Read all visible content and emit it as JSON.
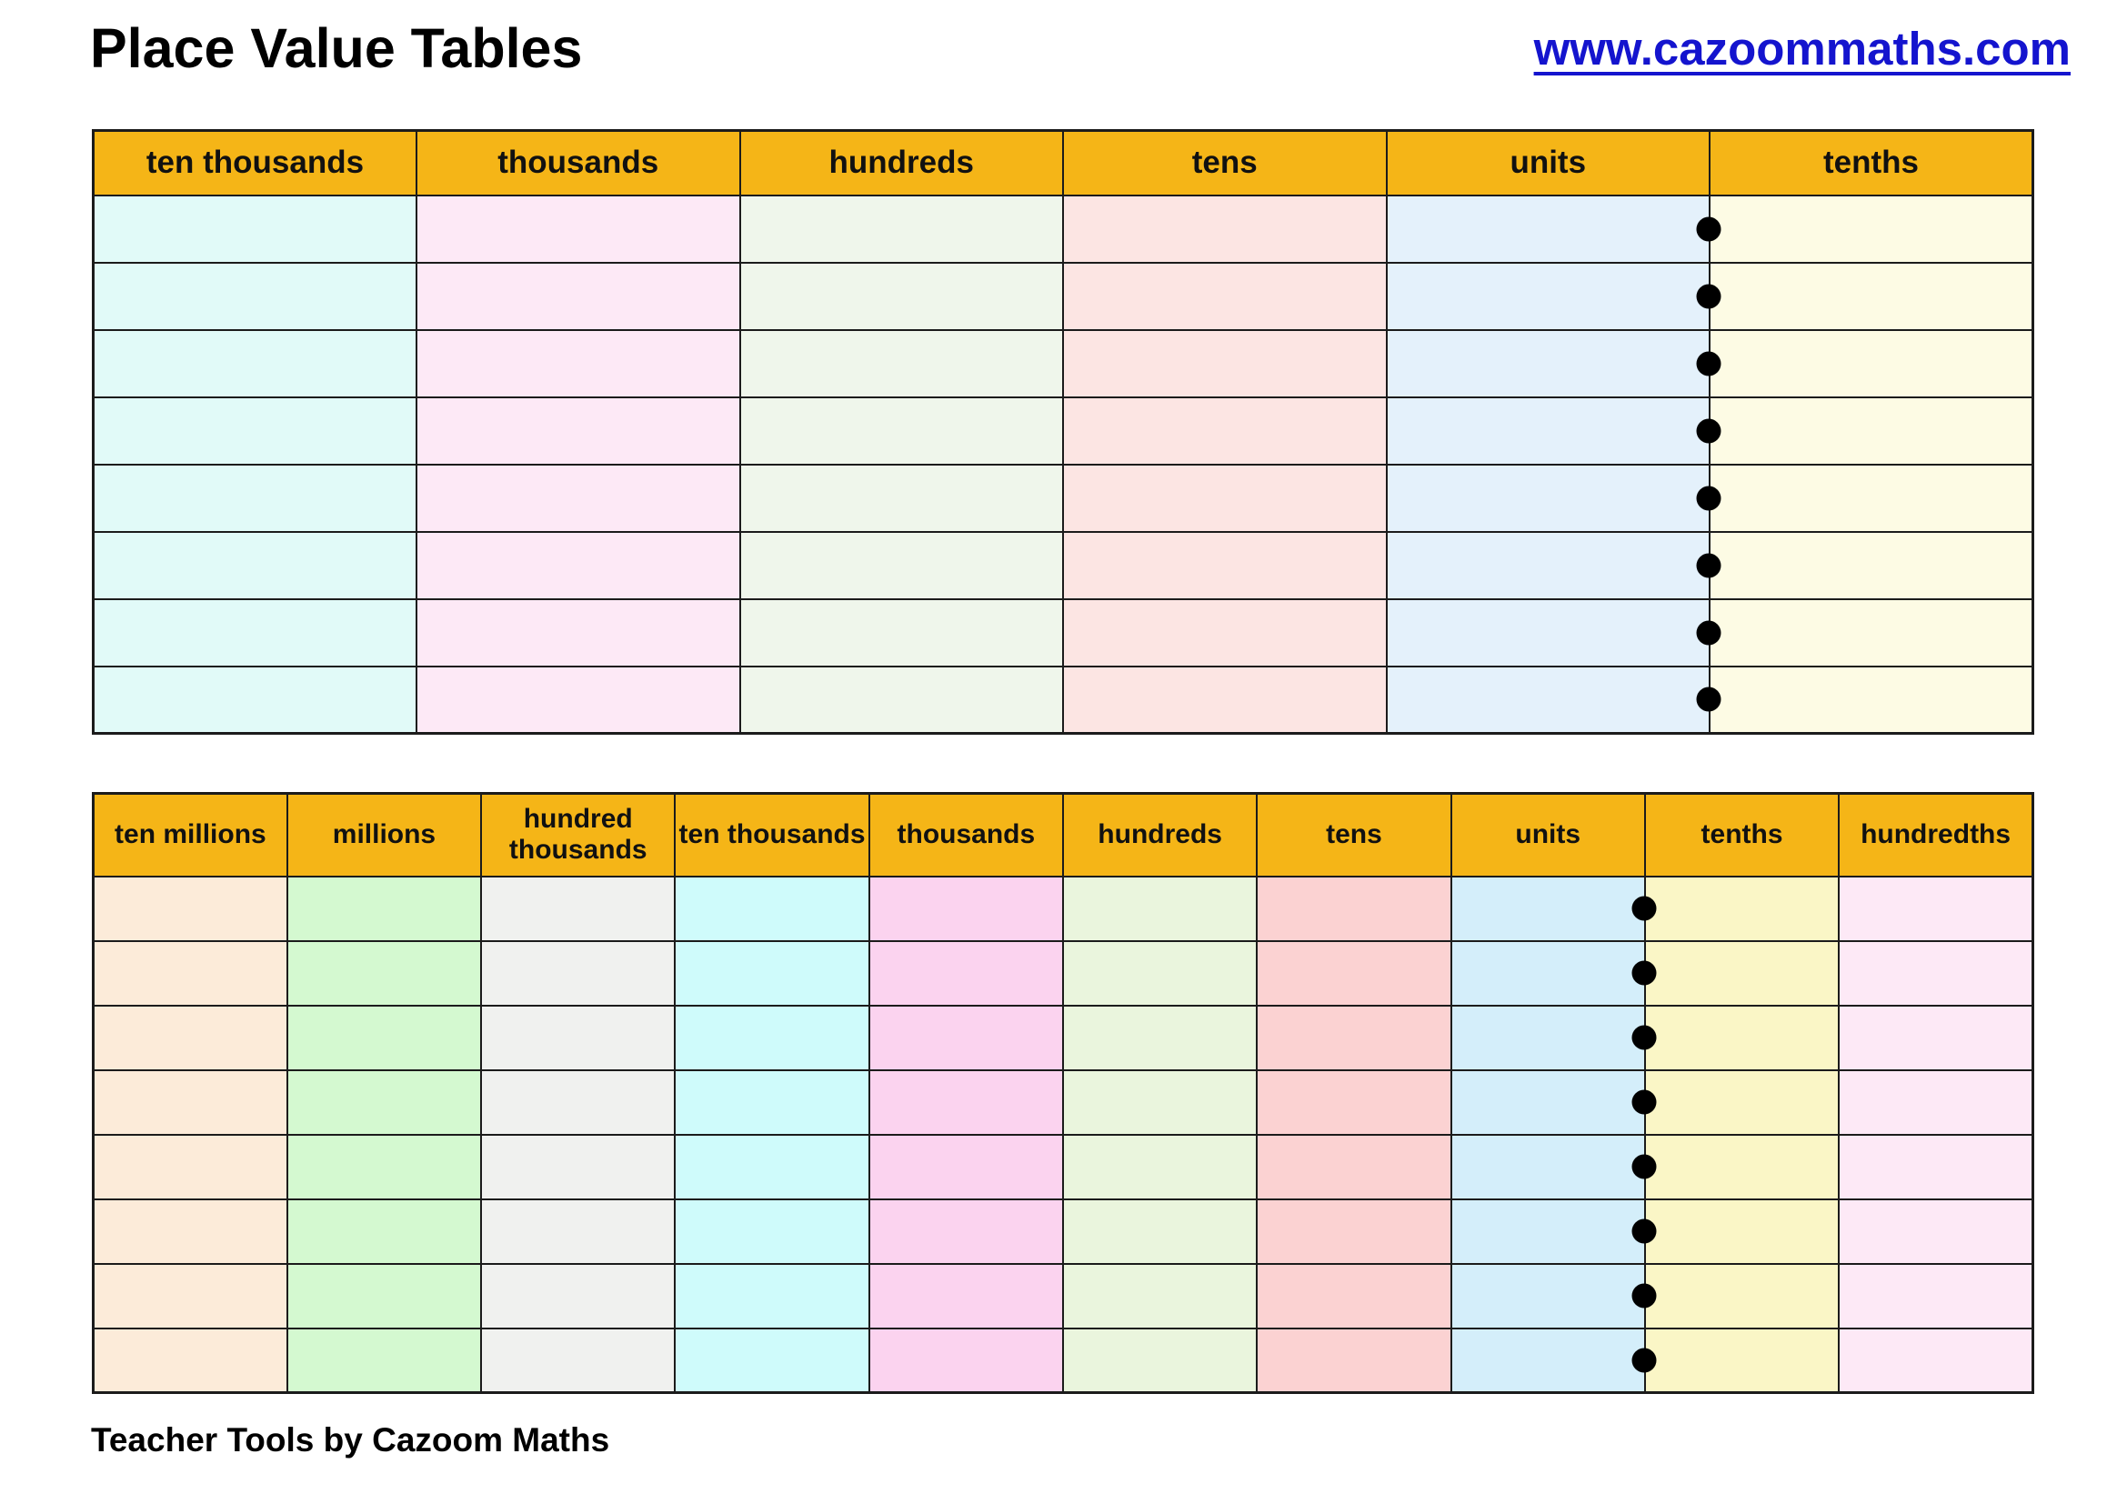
{
  "page": {
    "title": "Place Value Tables",
    "website_link": "www.cazoommaths.com",
    "footer_credit": "Teacher Tools by Cazoom Maths"
  },
  "colors": {
    "header_bg": "#F5B517",
    "table_border": "#1B1B1B",
    "link_blue": "#1414CE",
    "decimal_dot": "#000000",
    "page_bg": "#FFFFFF",
    "text": "#000000"
  },
  "tables": [
    {
      "name": "place-value-table-thousands",
      "row_count": 8,
      "decimal_point": {
        "after_column": "units",
        "shape": "black-dot"
      },
      "columns": [
        {
          "label": "ten thousands",
          "cell_color": "#E1FAF8"
        },
        {
          "label": "thousands",
          "cell_color": "#FDE9F6"
        },
        {
          "label": "hundreds",
          "cell_color": "#EFF6EB"
        },
        {
          "label": "tens",
          "cell_color": "#FCE5E3"
        },
        {
          "label": "units",
          "cell_color": "#E4F1FB"
        },
        {
          "label": "tenths",
          "cell_color": "#FDFBE4"
        }
      ]
    },
    {
      "name": "place-value-table-millions",
      "row_count": 8,
      "decimal_point": {
        "after_column": "units",
        "shape": "black-dot"
      },
      "columns": [
        {
          "label": "ten millions",
          "cell_color": "#FCEBD9"
        },
        {
          "label": "millions",
          "cell_color": "#D4F9D0"
        },
        {
          "label": "hundred thousands",
          "cell_color": "#F0F1EF"
        },
        {
          "label": "ten thousands",
          "cell_color": "#CFFBFB"
        },
        {
          "label": "thousands",
          "cell_color": "#FBD3EF"
        },
        {
          "label": "hundreds",
          "cell_color": "#EAF5DD"
        },
        {
          "label": "tens",
          "cell_color": "#FBD2D2"
        },
        {
          "label": "units",
          "cell_color": "#D4EEFA"
        },
        {
          "label": "tenths",
          "cell_color": "#FAF6C6"
        },
        {
          "label": "hundredths",
          "cell_color": "#FDE9F6"
        }
      ]
    }
  ]
}
